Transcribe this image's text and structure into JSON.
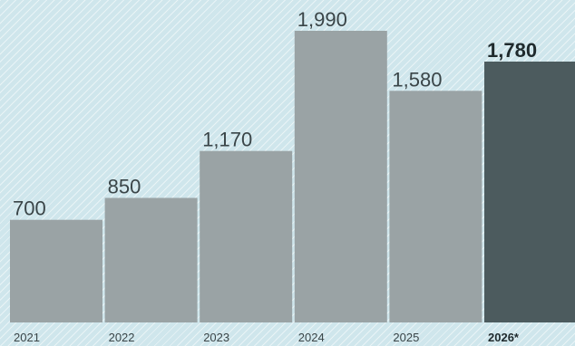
{
  "chart_data": {
    "type": "bar",
    "categories": [
      "2021",
      "2022",
      "2023",
      "2024",
      "2025",
      "2026*"
    ],
    "values": [
      700,
      850,
      1170,
      1990,
      1580,
      1780
    ],
    "value_labels": [
      "700",
      "850",
      "1,170",
      "1,990",
      "1,580",
      "1,780"
    ],
    "highlight_index": 5,
    "ylim": [
      0,
      2200
    ],
    "grid": false,
    "colors": {
      "bar": "#9aa3a5",
      "highlight": "#4c5b5e",
      "background": "#cfe6ec"
    }
  }
}
